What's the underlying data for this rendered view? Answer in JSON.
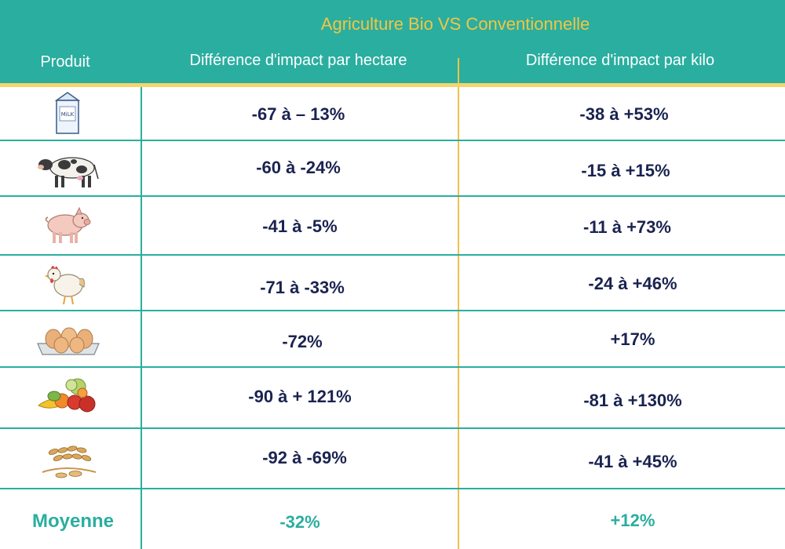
{
  "table": {
    "title": "Agriculture Bio VS Conventionnelle",
    "headers": {
      "produit": "Produit",
      "hectare": "Différence d'impact par hectare",
      "kilo": "Différence d'impact par kilo"
    },
    "rows": [
      {
        "icon": "milk-carton-icon",
        "icon_text": "MiLK",
        "hectare": "-67 à – 13%",
        "kilo": "-38 à +53%"
      },
      {
        "icon": "cow-icon",
        "hectare": "-60 à -24%",
        "kilo": "-15 à +15%"
      },
      {
        "icon": "pig-icon",
        "hectare": "-41 à -5%",
        "kilo": "-11 à +73%"
      },
      {
        "icon": "chicken-icon",
        "hectare": "-71 à -33%",
        "kilo": "-24 à +46%"
      },
      {
        "icon": "eggs-icon",
        "hectare": "-72%",
        "kilo": "+17%"
      },
      {
        "icon": "fruits-vegetables-icon",
        "hectare": "-90 à + 121%",
        "kilo": "-81 à +130%"
      },
      {
        "icon": "grain-icon",
        "hectare": "-92 à -69%",
        "kilo": "-41 à +45%"
      }
    ],
    "average": {
      "label": "Moyenne",
      "hectare": "-32%",
      "kilo": "+12%"
    }
  },
  "colors": {
    "teal": "#2aaea0",
    "gold": "#f4c542",
    "navy": "#1a2350"
  }
}
